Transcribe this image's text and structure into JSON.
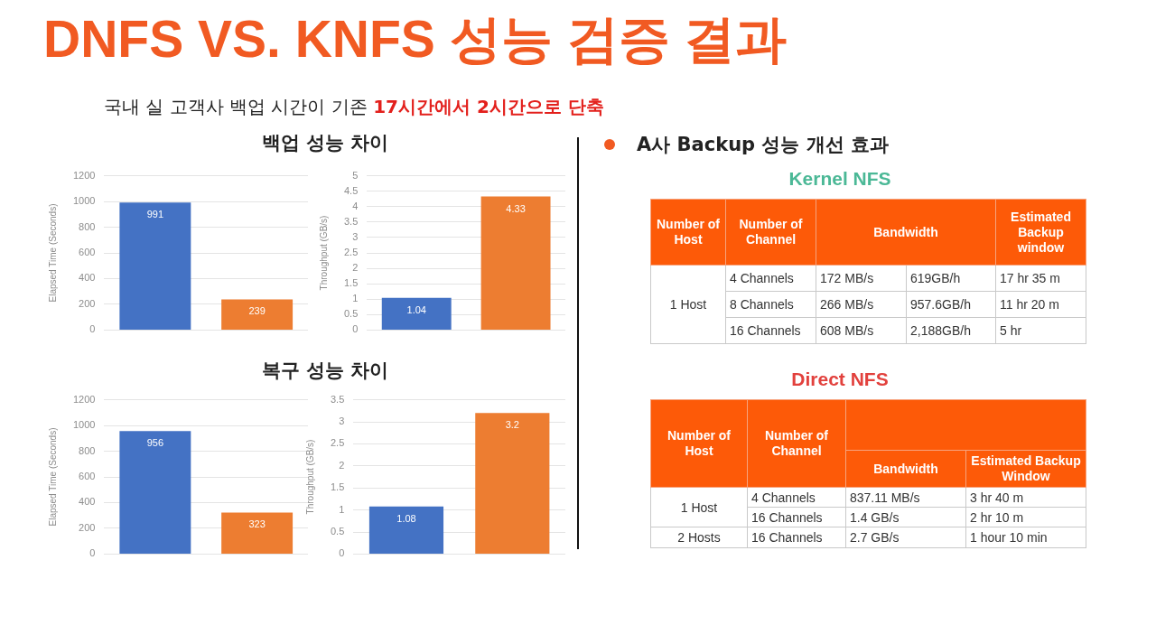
{
  "chart_data": [
    {
      "type": "other",
      "title": "DNFS VS. KNFS 성능 검증 결과",
      "annotations": [
        "국내 실 고객사 백업 시간이 기존",
        "17시간에서 2시간으로 단축"
      ]
    },
    {
      "type": "bar",
      "title": "백업 성능 차이",
      "categories": [
        null,
        null
      ],
      "values": [
        991,
        239
      ],
      "colors": [
        "#4472c4",
        "#ed7d31"
      ],
      "ylabel": "Elapsed Time (Seconds)",
      "ylim": [
        0,
        1200
      ],
      "yticks": [
        0,
        200,
        400,
        600,
        800,
        1000,
        1200
      ],
      "grid": "y",
      "tick_labels": "y",
      "data_labels": true
    },
    {
      "type": "bar",
      "categories": [
        null,
        null
      ],
      "values": [
        1.04,
        4.33
      ],
      "colors": [
        "#4472c4",
        "#ed7d31"
      ],
      "ylabel": "Throughput (GB/s)",
      "ylim": [
        0,
        5
      ],
      "yticks": [
        0,
        0.5,
        1,
        1.5,
        2,
        2.5,
        3,
        3.5,
        4,
        4.5,
        5
      ],
      "grid": "y",
      "tick_labels": "y",
      "data_labels": true
    },
    {
      "type": "bar",
      "title": "복구 성능 차이",
      "categories": [
        null,
        null
      ],
      "values": [
        956,
        323
      ],
      "colors": [
        "#4472c4",
        "#ed7d31"
      ],
      "ylabel": "Elapsed Time (Seconds)",
      "ylim": [
        0,
        1200
      ],
      "yticks": [
        0,
        200,
        400,
        600,
        800,
        1000,
        1200
      ],
      "grid": "y",
      "tick_labels": "y",
      "data_labels": true
    },
    {
      "type": "bar",
      "categories": [
        null,
        null
      ],
      "values": [
        1.08,
        3.2
      ],
      "colors": [
        "#4472c4",
        "#ed7d31"
      ],
      "ylabel": "Throughput (GB/s)",
      "ylim": [
        0,
        3.5
      ],
      "yticks": [
        0,
        0.5,
        1,
        1.5,
        2,
        2.5,
        3,
        3.5
      ],
      "grid": "y",
      "tick_labels": "y",
      "data_labels": true
    },
    {
      "type": "other",
      "title": "A사 Backup 성능 개선 효과",
      "subtitle": "Kernel NFS",
      "annotations": [
        "Number of Host",
        "Number of Channel",
        "Bandwidth",
        "Estimated Backup window",
        "1 Host",
        "4 Channels",
        "172 MB/s",
        "619GB/h",
        "17 hr 35 m",
        "8 Channels",
        "266 MB/s",
        "957.6GB/h",
        "11 hr 20 m",
        "16 Channels",
        "608 MB/s",
        "2,188GB/h",
        "5 hr"
      ]
    },
    {
      "type": "other",
      "title": "Direct NFS",
      "annotations": [
        "Number of Host",
        "Number of Channel",
        "Bandwidth",
        "Estimated Backup Window",
        "1 Host",
        "4 Channels",
        "837.11 MB/s",
        "3 hr 40 m",
        "16 Channels",
        "1.4 GB/s",
        "2 hr 10 m",
        "2 Hosts",
        "16 Channels",
        "2.7 GB/s",
        "1 hour 10 min"
      ]
    }
  ]
}
